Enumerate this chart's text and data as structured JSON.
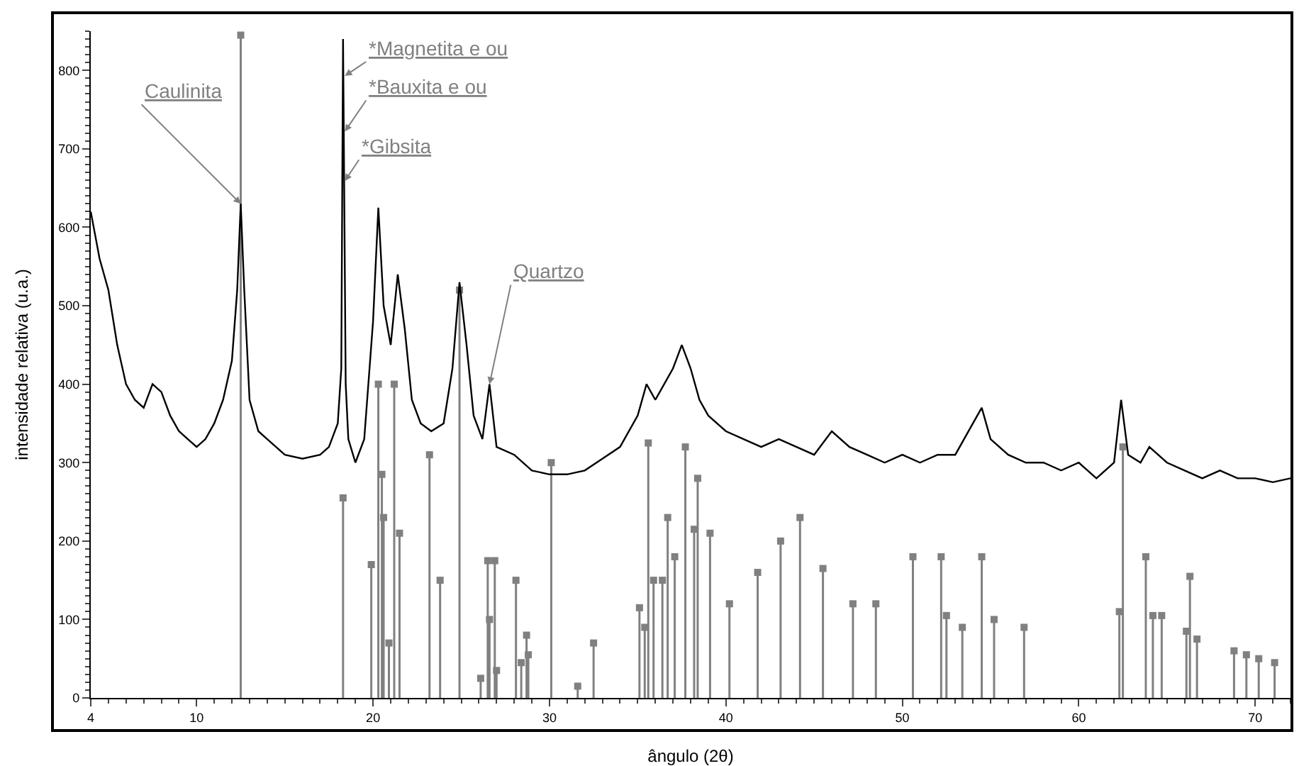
{
  "chart_data": {
    "type": "line",
    "xlabel": "ângulo (2θ)",
    "ylabel": "intensidade relativa (u.a.)",
    "xlim": [
      4,
      72
    ],
    "xticks": [
      4,
      10,
      20,
      30,
      40,
      50,
      60,
      70
    ],
    "ylim": [
      0,
      850
    ],
    "yticks": [
      0,
      100,
      200,
      300,
      400,
      500,
      600,
      700,
      800
    ],
    "grid": false,
    "marker": "none",
    "line_style": "solid",
    "series": [
      {
        "color": "#000000",
        "x": [
          4,
          4.5,
          5,
          5.5,
          6,
          6.5,
          7,
          7.5,
          8,
          8.5,
          9,
          9.5,
          10,
          10.5,
          11,
          11.5,
          12,
          12.3,
          12.5,
          12.7,
          13,
          13.5,
          14,
          15,
          16,
          17,
          17.5,
          18,
          18.2,
          18.3,
          18.45,
          18.6,
          19,
          19.5,
          20,
          20.3,
          20.6,
          21,
          21.4,
          21.8,
          22.2,
          22.7,
          23.3,
          24,
          24.5,
          24.9,
          25.3,
          25.7,
          26.2,
          26.6,
          27,
          28,
          29,
          30,
          31,
          32,
          33,
          34,
          35,
          35.5,
          36,
          36.5,
          37,
          37.5,
          38,
          38.5,
          39,
          40,
          41,
          42,
          43,
          44,
          45,
          46,
          47,
          48,
          49,
          50,
          51,
          52,
          53,
          54,
          54.5,
          55,
          56,
          57,
          58,
          59,
          60,
          61,
          62,
          62.4,
          62.8,
          63.5,
          64,
          65,
          66,
          67,
          68,
          69,
          70,
          71,
          72
        ],
        "values": [
          620,
          560,
          520,
          450,
          400,
          380,
          370,
          400,
          390,
          360,
          340,
          330,
          320,
          330,
          350,
          380,
          430,
          520,
          630,
          520,
          380,
          340,
          330,
          310,
          305,
          310,
          320,
          350,
          420,
          840,
          400,
          330,
          300,
          330,
          480,
          625,
          500,
          450,
          540,
          470,
          380,
          350,
          340,
          350,
          420,
          530,
          450,
          360,
          330,
          400,
          320,
          310,
          290,
          285,
          285,
          290,
          305,
          320,
          360,
          400,
          380,
          400,
          420,
          450,
          420,
          380,
          360,
          340,
          330,
          320,
          330,
          320,
          310,
          340,
          320,
          310,
          300,
          310,
          300,
          310,
          310,
          350,
          370,
          330,
          310,
          300,
          300,
          290,
          300,
          280,
          300,
          380,
          310,
          300,
          320,
          300,
          290,
          280,
          290,
          280,
          280,
          275,
          280
        ]
      },
      {
        "type": "lollipop",
        "color": "#808080",
        "marker": "square",
        "x": [
          12.5,
          18.3,
          19.9,
          20.3,
          20.5,
          20.6,
          20.9,
          21.2,
          21.5,
          23.2,
          23.8,
          24.9,
          26.1,
          26.5,
          26.6,
          26.9,
          27,
          28.1,
          28.4,
          28.7,
          28.8,
          30.1,
          31.6,
          32.5,
          35.1,
          35.4,
          35.6,
          35.9,
          36.4,
          36.7,
          37.1,
          37.7,
          38.2,
          38.4,
          39.1,
          40.2,
          41.8,
          43.1,
          44.2,
          45.5,
          47.2,
          48.5,
          50.6,
          52.2,
          52.5,
          53.4,
          54.5,
          55.2,
          56.9,
          62.3,
          62.5,
          63.8,
          64.2,
          64.7,
          66.1,
          66.3,
          66.7,
          68.8,
          69.5,
          70.2,
          71.1
        ],
        "values": [
          845,
          255,
          170,
          400,
          285,
          230,
          70,
          400,
          210,
          310,
          150,
          520,
          25,
          175,
          100,
          175,
          35,
          150,
          45,
          80,
          55,
          300,
          15,
          70,
          115,
          90,
          325,
          150,
          150,
          230,
          180,
          320,
          215,
          280,
          210,
          120,
          160,
          200,
          230,
          165,
          120,
          120,
          180,
          180,
          105,
          90,
          180,
          100,
          90,
          110,
          320,
          180,
          105,
          105,
          85,
          155,
          75,
          60,
          55,
          50,
          45
        ]
      }
    ],
    "annotations": [
      {
        "text": "Caulinita",
        "x": 12.5,
        "y": 630
      },
      {
        "text": "*Magnetita e ou",
        "x": 18.4,
        "y": 793
      },
      {
        "text": "*Bauxita e ou",
        "x": 18.4,
        "y": 722
      },
      {
        "text": "*Gibsita",
        "x": 18.4,
        "y": 659
      },
      {
        "text": "Quartzo",
        "x": 26.6,
        "y": 400
      }
    ]
  }
}
